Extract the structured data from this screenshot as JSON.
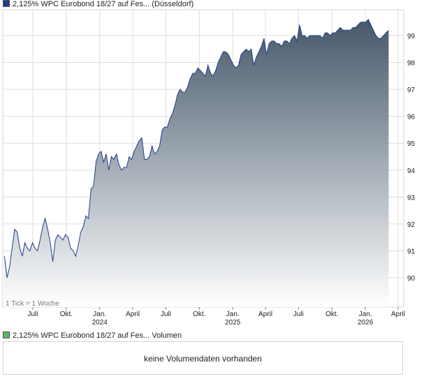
{
  "legend": {
    "price_label": "2,125% WPC Eurobond 18/27 auf Fes... (Düsseldorf)",
    "price_color": "#1f3c88",
    "volume_label": "2,125% WPC Eurobond 18/27 auf Fes... Volumen",
    "volume_color": "#5cb85c"
  },
  "chart_note": "1 Tick = 1 Woche",
  "volume_message": "keine Volumendaten vorhanden",
  "chart_data": {
    "type": "area",
    "title": "2,125% WPC Eurobond 18/27 auf Fes... (Düsseldorf)",
    "xlabel": "",
    "ylabel": "",
    "ylim": [
      89,
      99.6
    ],
    "y_ticks": [
      90,
      91,
      92,
      93,
      94,
      95,
      96,
      97,
      98,
      99
    ],
    "x_ticks": [
      {
        "label": "Juli",
        "year": "",
        "date": "2023-07-01"
      },
      {
        "label": "Okt.",
        "year": "",
        "date": "2023-10-01"
      },
      {
        "label": "Jan.",
        "year": "2024",
        "date": "2024-01-01"
      },
      {
        "label": "April",
        "year": "",
        "date": "2024-04-01"
      },
      {
        "label": "Juli",
        "year": "",
        "date": "2024-07-01"
      },
      {
        "label": "Okt.",
        "year": "",
        "date": "2024-10-01"
      },
      {
        "label": "Jan.",
        "year": "2025",
        "date": "2025-01-01"
      },
      {
        "label": "April",
        "year": "",
        "date": "2025-04-01"
      },
      {
        "label": "Juli",
        "year": "",
        "date": "2025-07-01"
      },
      {
        "label": "Okt.",
        "year": "",
        "date": "2025-10-01"
      },
      {
        "label": "Jan.",
        "year": "2026",
        "date": "2026-01-01"
      },
      {
        "label": "April",
        "year": "",
        "date": "2026-04-01"
      }
    ],
    "grid": true,
    "colors": {
      "line": "#1f3c88",
      "fill_top": "#45586a",
      "fill_bottom": "#ffffff",
      "grid": "#dddddd"
    },
    "series": [
      {
        "points": [
          [
            "2023-04-14",
            90.8
          ],
          [
            "2023-04-21",
            90.0
          ],
          [
            "2023-04-28",
            90.4
          ],
          [
            "2023-05-05",
            91.1
          ],
          [
            "2023-05-12",
            91.8
          ],
          [
            "2023-05-19",
            91.7
          ],
          [
            "2023-05-26",
            91.1
          ],
          [
            "2023-06-02",
            90.8
          ],
          [
            "2023-06-09",
            91.3
          ],
          [
            "2023-06-16",
            91.1
          ],
          [
            "2023-06-23",
            91.0
          ],
          [
            "2023-06-30",
            91.3
          ],
          [
            "2023-07-07",
            91.1
          ],
          [
            "2023-07-14",
            91.0
          ],
          [
            "2023-07-21",
            91.4
          ],
          [
            "2023-07-28",
            91.9
          ],
          [
            "2023-08-04",
            92.2
          ],
          [
            "2023-08-11",
            91.8
          ],
          [
            "2023-08-18",
            91.3
          ],
          [
            "2023-08-25",
            90.6
          ],
          [
            "2023-09-01",
            91.4
          ],
          [
            "2023-09-08",
            91.6
          ],
          [
            "2023-09-15",
            91.5
          ],
          [
            "2023-09-22",
            91.4
          ],
          [
            "2023-09-29",
            91.6
          ],
          [
            "2023-10-06",
            91.5
          ],
          [
            "2023-10-13",
            91.1
          ],
          [
            "2023-10-20",
            91.0
          ],
          [
            "2023-10-27",
            90.8
          ],
          [
            "2023-11-03",
            91.2
          ],
          [
            "2023-11-10",
            91.7
          ],
          [
            "2023-11-17",
            91.9
          ],
          [
            "2023-11-24",
            92.3
          ],
          [
            "2023-12-01",
            92.2
          ],
          [
            "2023-12-08",
            93.3
          ],
          [
            "2023-12-15",
            93.4
          ],
          [
            "2023-12-22",
            94.3
          ],
          [
            "2023-12-29",
            94.6
          ],
          [
            "2024-01-05",
            94.7
          ],
          [
            "2024-01-12",
            94.3
          ],
          [
            "2024-01-19",
            94.6
          ],
          [
            "2024-01-26",
            94.0
          ],
          [
            "2024-02-02",
            94.5
          ],
          [
            "2024-02-09",
            94.4
          ],
          [
            "2024-02-16",
            94.6
          ],
          [
            "2024-02-23",
            94.2
          ],
          [
            "2024-03-01",
            94.0
          ],
          [
            "2024-03-08",
            94.1
          ],
          [
            "2024-03-15",
            94.1
          ],
          [
            "2024-03-22",
            94.5
          ],
          [
            "2024-03-29",
            94.4
          ],
          [
            "2024-04-05",
            94.7
          ],
          [
            "2024-04-12",
            94.9
          ],
          [
            "2024-04-19",
            95.1
          ],
          [
            "2024-04-26",
            95.2
          ],
          [
            "2024-05-03",
            94.4
          ],
          [
            "2024-05-10",
            94.4
          ],
          [
            "2024-05-17",
            94.5
          ],
          [
            "2024-05-24",
            94.9
          ],
          [
            "2024-05-31",
            94.6
          ],
          [
            "2024-06-07",
            94.7
          ],
          [
            "2024-06-14",
            94.9
          ],
          [
            "2024-06-21",
            95.5
          ],
          [
            "2024-06-28",
            95.6
          ],
          [
            "2024-07-05",
            95.6
          ],
          [
            "2024-07-12",
            95.9
          ],
          [
            "2024-07-19",
            96.1
          ],
          [
            "2024-07-26",
            96.4
          ],
          [
            "2024-08-02",
            96.8
          ],
          [
            "2024-08-09",
            97.0
          ],
          [
            "2024-08-16",
            96.9
          ],
          [
            "2024-08-23",
            96.9
          ],
          [
            "2024-08-30",
            97.1
          ],
          [
            "2024-09-06",
            97.4
          ],
          [
            "2024-09-13",
            97.6
          ],
          [
            "2024-09-20",
            97.6
          ],
          [
            "2024-09-27",
            97.8
          ],
          [
            "2024-10-04",
            97.7
          ],
          [
            "2024-10-11",
            97.6
          ],
          [
            "2024-10-18",
            97.5
          ],
          [
            "2024-10-25",
            97.9
          ],
          [
            "2024-11-01",
            97.6
          ],
          [
            "2024-11-08",
            97.5
          ],
          [
            "2024-11-15",
            97.7
          ],
          [
            "2024-11-22",
            98.0
          ],
          [
            "2024-11-29",
            98.2
          ],
          [
            "2024-12-06",
            98.4
          ],
          [
            "2024-12-13",
            98.4
          ],
          [
            "2024-12-20",
            98.3
          ],
          [
            "2024-12-27",
            98.1
          ],
          [
            "2025-01-03",
            97.9
          ],
          [
            "2025-01-10",
            97.8
          ],
          [
            "2025-01-17",
            97.9
          ],
          [
            "2025-01-24",
            98.3
          ],
          [
            "2025-01-31",
            98.4
          ],
          [
            "2025-02-07",
            98.5
          ],
          [
            "2025-02-14",
            98.4
          ],
          [
            "2025-02-21",
            98.5
          ],
          [
            "2025-02-28",
            97.9
          ],
          [
            "2025-03-07",
            98.2
          ],
          [
            "2025-03-14",
            98.4
          ],
          [
            "2025-03-21",
            98.6
          ],
          [
            "2025-03-28",
            98.9
          ],
          [
            "2025-04-04",
            98.3
          ],
          [
            "2025-04-11",
            98.7
          ],
          [
            "2025-04-18",
            98.8
          ],
          [
            "2025-04-25",
            98.8
          ],
          [
            "2025-05-02",
            98.7
          ],
          [
            "2025-05-09",
            98.7
          ],
          [
            "2025-05-16",
            98.6
          ],
          [
            "2025-05-23",
            98.8
          ],
          [
            "2025-05-30",
            98.8
          ],
          [
            "2025-06-06",
            98.7
          ],
          [
            "2025-06-13",
            98.9
          ],
          [
            "2025-06-20",
            99.0
          ],
          [
            "2025-06-27",
            98.8
          ],
          [
            "2025-07-04",
            99.4
          ],
          [
            "2025-07-11",
            99.0
          ],
          [
            "2025-07-18",
            99.0
          ],
          [
            "2025-07-25",
            98.9
          ],
          [
            "2025-08-01",
            99.0
          ],
          [
            "2025-08-08",
            99.0
          ],
          [
            "2025-08-15",
            99.0
          ],
          [
            "2025-08-22",
            99.0
          ],
          [
            "2025-08-29",
            99.0
          ],
          [
            "2025-09-05",
            98.9
          ],
          [
            "2025-09-12",
            99.1
          ],
          [
            "2025-09-19",
            99.1
          ],
          [
            "2025-09-26",
            99.0
          ],
          [
            "2025-10-03",
            99.1
          ],
          [
            "2025-10-10",
            99.1
          ],
          [
            "2025-10-17",
            99.2
          ],
          [
            "2025-10-24",
            99.3
          ],
          [
            "2025-10-31",
            99.2
          ],
          [
            "2025-11-07",
            99.2
          ],
          [
            "2025-11-14",
            99.2
          ],
          [
            "2025-11-21",
            99.2
          ],
          [
            "2025-11-28",
            99.3
          ],
          [
            "2025-12-05",
            99.3
          ],
          [
            "2025-12-12",
            99.4
          ],
          [
            "2025-12-19",
            99.5
          ],
          [
            "2025-12-26",
            99.5
          ],
          [
            "2026-01-02",
            99.5
          ],
          [
            "2026-01-09",
            99.6
          ],
          [
            "2026-01-16",
            99.4
          ],
          [
            "2026-01-23",
            99.2
          ],
          [
            "2026-01-30",
            99.0
          ],
          [
            "2026-02-06",
            98.9
          ],
          [
            "2026-02-13",
            98.9
          ],
          [
            "2026-02-20",
            99.0
          ],
          [
            "2026-02-27",
            99.1
          ],
          [
            "2026-03-06",
            99.2
          ]
        ]
      }
    ]
  }
}
